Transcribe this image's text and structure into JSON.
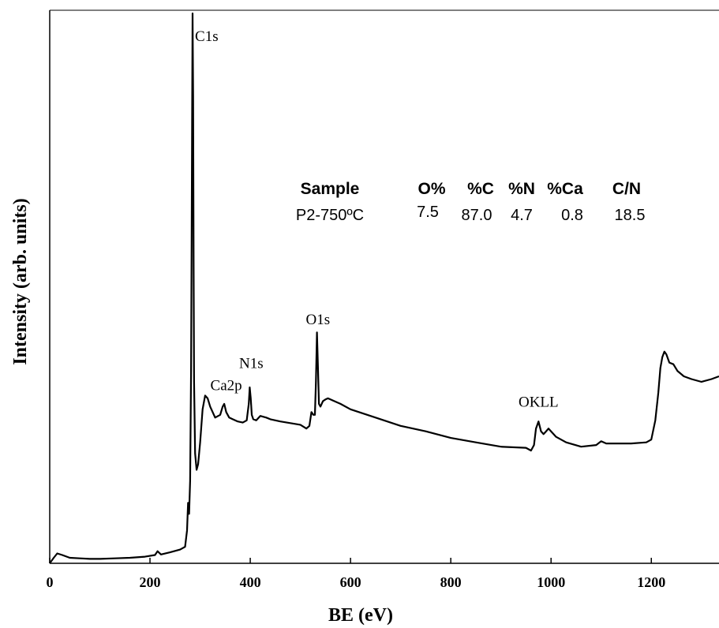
{
  "chart_data": {
    "type": "line",
    "xlabel": "BE (eV)",
    "ylabel": "Intensity (arb. units)",
    "xlim": [
      0,
      1335
    ],
    "ylim": [
      0,
      1
    ],
    "xticks": [
      0,
      200,
      400,
      600,
      800,
      1000,
      1200
    ],
    "grid": false,
    "series": [
      {
        "x": [
          0,
          8,
          15,
          25,
          40,
          60,
          80,
          100,
          130,
          160,
          190,
          210,
          215,
          222,
          240,
          260,
          270,
          274,
          276,
          278,
          280,
          282,
          283,
          284,
          285,
          286,
          287,
          288,
          290,
          293,
          296,
          300,
          305,
          310,
          315,
          320,
          330,
          340,
          345,
          348,
          352,
          358,
          365,
          375,
          385,
          393,
          397,
          399,
          401,
          403,
          406,
          412,
          420,
          432,
          440,
          460,
          480,
          500,
          512,
          518,
          522,
          526,
          529,
          531,
          533,
          535,
          537,
          540,
          545,
          550,
          555,
          560,
          580,
          600,
          650,
          700,
          750,
          800,
          850,
          900,
          950,
          960,
          966,
          970,
          975,
          980,
          985,
          990,
          995,
          1000,
          1010,
          1030,
          1060,
          1090,
          1100,
          1110,
          1130,
          1160,
          1190,
          1200,
          1208,
          1214,
          1218,
          1222,
          1226,
          1230,
          1236,
          1244,
          1252,
          1265,
          1280,
          1300,
          1320,
          1335
        ],
        "values": [
          0.0,
          0.01,
          0.018,
          0.015,
          0.01,
          0.009,
          0.008,
          0.008,
          0.009,
          0.01,
          0.012,
          0.015,
          0.022,
          0.016,
          0.02,
          0.025,
          0.03,
          0.06,
          0.11,
          0.09,
          0.15,
          0.35,
          0.58,
          0.8,
          1.0,
          0.85,
          0.55,
          0.33,
          0.2,
          0.17,
          0.18,
          0.22,
          0.28,
          0.305,
          0.3,
          0.285,
          0.265,
          0.27,
          0.285,
          0.29,
          0.275,
          0.265,
          0.262,
          0.258,
          0.256,
          0.26,
          0.29,
          0.32,
          0.3,
          0.27,
          0.262,
          0.26,
          0.268,
          0.265,
          0.262,
          0.258,
          0.255,
          0.252,
          0.245,
          0.25,
          0.275,
          0.27,
          0.27,
          0.33,
          0.42,
          0.36,
          0.29,
          0.285,
          0.295,
          0.298,
          0.3,
          0.298,
          0.29,
          0.28,
          0.265,
          0.25,
          0.24,
          0.228,
          0.22,
          0.212,
          0.21,
          0.205,
          0.215,
          0.245,
          0.258,
          0.24,
          0.235,
          0.24,
          0.245,
          0.24,
          0.23,
          0.22,
          0.212,
          0.215,
          0.222,
          0.218,
          0.218,
          0.218,
          0.22,
          0.225,
          0.26,
          0.31,
          0.355,
          0.375,
          0.385,
          0.38,
          0.365,
          0.362,
          0.35,
          0.34,
          0.335,
          0.33,
          0.335,
          0.34
        ]
      }
    ],
    "peak_labels": [
      {
        "text": "C1s",
        "x": 313,
        "y": 0.95
      },
      {
        "text": "Ca2p",
        "x": 352,
        "y": 0.315
      },
      {
        "text": "N1s",
        "x": 402,
        "y": 0.355
      },
      {
        "text": "O1s",
        "x": 535,
        "y": 0.435
      },
      {
        "text": "OKLL",
        "x": 975,
        "y": 0.285
      }
    ],
    "composition_table": {
      "headers": [
        "Sample",
        "O%",
        "%C",
        "%N",
        "%Ca",
        "C/N"
      ],
      "rows": [
        [
          "P2-750ºC",
          "7.5",
          "87.0",
          "4.7",
          "0.8",
          "18.5"
        ]
      ]
    }
  }
}
